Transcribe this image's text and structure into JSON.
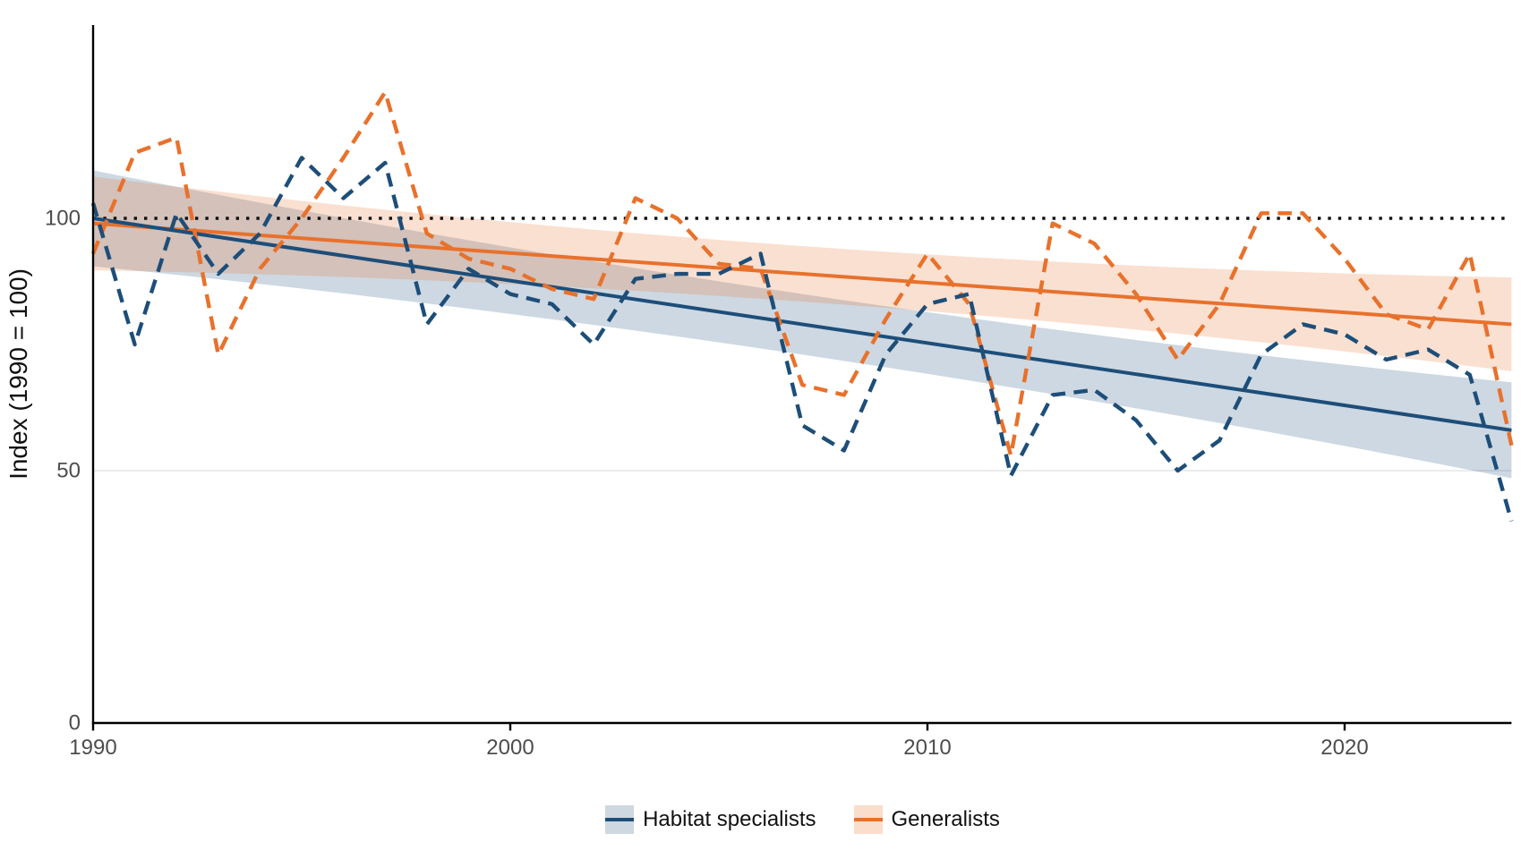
{
  "chart_data": {
    "type": "line",
    "title": "",
    "xlabel": "",
    "ylabel": "Index (1990 = 100)",
    "x_range": [
      1990,
      2024
    ],
    "y_range": [
      0,
      138
    ],
    "x_ticks": [
      "1990",
      "2000",
      "2010",
      "2020"
    ],
    "x_tick_years": [
      1990,
      2000,
      2010,
      2020
    ],
    "y_ticks": [
      "0",
      "50",
      "100"
    ],
    "y_tick_values": [
      0,
      50,
      100
    ],
    "gridline_values": [
      50
    ],
    "grid": "minimal",
    "legend_position": "bottom",
    "reference_line": {
      "y": 100,
      "style": "dotted",
      "color": "#111111"
    },
    "years": [
      1990,
      1991,
      1992,
      1993,
      1994,
      1995,
      1996,
      1997,
      1998,
      1999,
      2000,
      2001,
      2002,
      2003,
      2004,
      2005,
      2006,
      2007,
      2008,
      2009,
      2010,
      2011,
      2012,
      2013,
      2014,
      2015,
      2016,
      2017,
      2018,
      2019,
      2020,
      2021,
      2022,
      2023,
      2024
    ],
    "series": [
      {
        "name": "Habitat specialists",
        "style": "dashed",
        "line_color": "#1D4E79",
        "ribbon_fill": "rgba(29,78,121,0.22)",
        "key_fill": "#CED8E1",
        "values": [
          103,
          75,
          101,
          89,
          97,
          112,
          104,
          111,
          79,
          90,
          85,
          83,
          75,
          88,
          89,
          89,
          93,
          59,
          54,
          73,
          83,
          85,
          49,
          65,
          66,
          60,
          50,
          56,
          73,
          79,
          77,
          72,
          74,
          69,
          40
        ],
        "trend": {
          "type": "linear",
          "start_value": 100,
          "end_value": 58
        },
        "ci_halfwidth": {
          "ends": 9.5,
          "middle": 6.0
        }
      },
      {
        "name": "Generalists",
        "style": "dashed",
        "line_color": "#E8712C",
        "ribbon_fill": "rgba(232,113,44,0.22)",
        "key_fill": "#FADDCB",
        "values": [
          93,
          113,
          116,
          73,
          90,
          100,
          112,
          125,
          97,
          92,
          90,
          86,
          84,
          104,
          100,
          91,
          90,
          67,
          65,
          80,
          93,
          83,
          53,
          99,
          95,
          85,
          72,
          83,
          101,
          101,
          92,
          81,
          78,
          93,
          55
        ],
        "trend": {
          "type": "linear",
          "start_value": 99,
          "end_value": 79
        },
        "ci_halfwidth": {
          "ends": 9.3,
          "middle": 5.5
        }
      }
    ],
    "legend": {
      "items": [
        "Habitat specialists",
        "Generalists"
      ]
    },
    "colors": {
      "axis": "#000000",
      "tick_label": "#4d4d4d",
      "gridline": "#EAECEE",
      "background": "#ffffff"
    }
  }
}
